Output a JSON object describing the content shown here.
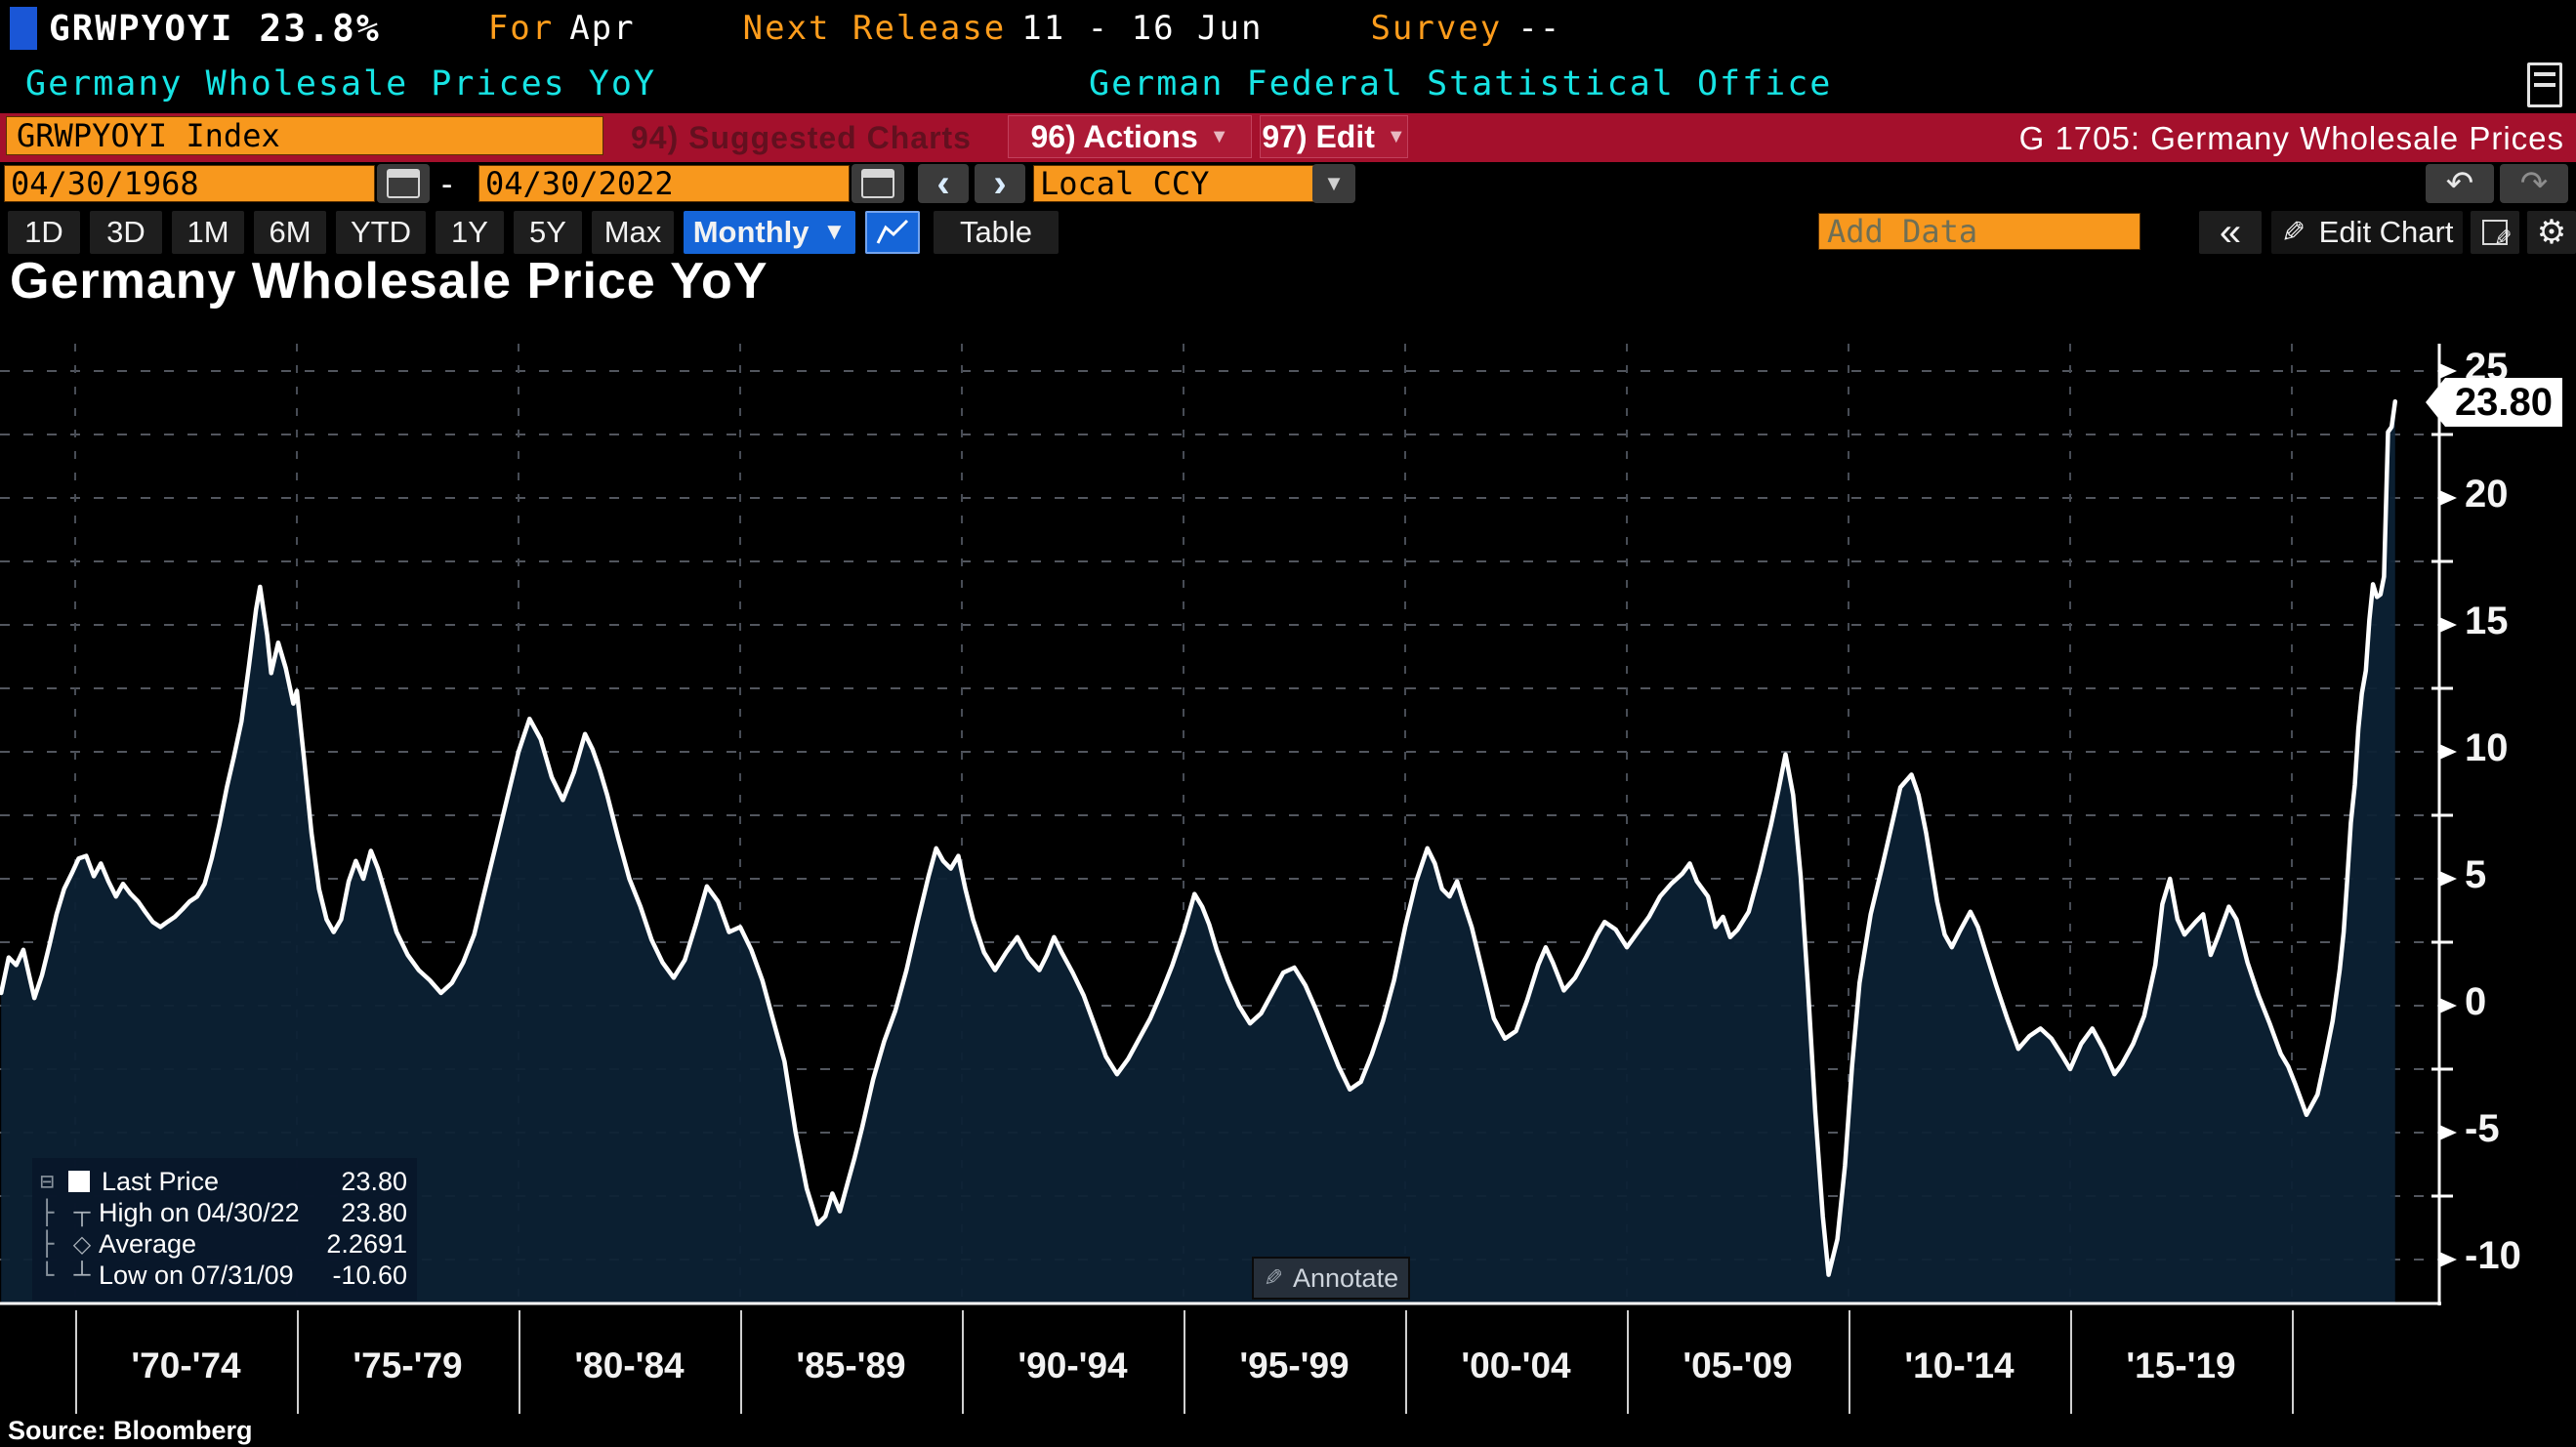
{
  "header": {
    "ticker": "GRWPYOYI",
    "value": "23.8%",
    "for_label": "For",
    "for_value": "Apr",
    "next_release_label": "Next Release",
    "next_release_value": "11 - 16 Jun",
    "survey_label": "Survey",
    "survey_value": "--"
  },
  "security_row": {
    "name": "Germany Wholesale Prices YoY",
    "organization": "German Federal Statistical Office"
  },
  "toolbar": {
    "ticker_field": "GRWPYOYI Index",
    "suggested_charts": "94) Suggested Charts",
    "actions": "96) Actions",
    "edit": "97) Edit",
    "chart_id": "G 1705: Germany Wholesale Prices"
  },
  "date_bar": {
    "from": "04/30/1968",
    "dash": "-",
    "to": "04/30/2022",
    "prev": "‹",
    "next": "›",
    "currency": "Local CCY",
    "undo": "↶",
    "redo": "↷"
  },
  "range_bar": {
    "items": [
      "1D",
      "3D",
      "1M",
      "6M",
      "YTD",
      "1Y",
      "5Y",
      "Max"
    ],
    "period": "Monthly",
    "table": "Table",
    "add_data_placeholder": "Add Data",
    "collapse": "«",
    "edit_chart": "Edit Chart"
  },
  "chart": {
    "title": "Germany Wholesale Price YoY",
    "badge": "23.80",
    "annotate": "Annotate",
    "source": "Source: Bloomberg",
    "legend": [
      {
        "label": "Last Price",
        "value": "23.80"
      },
      {
        "label": "High on 04/30/22",
        "value": "23.80"
      },
      {
        "label": "Average",
        "value": "2.2691"
      },
      {
        "label": "Low on 07/31/09",
        "value": "-10.60"
      }
    ]
  },
  "chart_data": {
    "type": "area",
    "title": "Germany Wholesale Price YoY",
    "x_range": [
      "04/30/1968",
      "04/30/2022"
    ],
    "ylim": [
      -12,
      26
    ],
    "y_ticks": [
      25,
      20,
      15,
      10,
      5,
      0,
      -5,
      -10
    ],
    "y_minor_step": 2.5,
    "grid": "dashed",
    "x_separator_years": [
      1970,
      1975,
      1980,
      1985,
      1990,
      1995,
      2000,
      2005,
      2010,
      2015,
      2020
    ],
    "x_band_labels": [
      "'70-'74",
      "'75-'79",
      "'80-'84",
      "'85-'89",
      "'90-'94",
      "'95-'99",
      "'00-'04",
      "'05-'09",
      "'10-'14",
      "'15-'19"
    ],
    "line_color": "#ffffff",
    "fill_color": "#0c2134",
    "stats": {
      "last": 23.8,
      "high_date": "04/30/22",
      "high": 23.8,
      "average": 2.2691,
      "low_date": "07/31/09",
      "low": -10.6
    },
    "series": [
      {
        "name": "Last Price",
        "points": [
          [
            1968.33,
            0.5
          ],
          [
            1968.5,
            1.9
          ],
          [
            1968.67,
            1.6
          ],
          [
            1968.83,
            2.2
          ],
          [
            1969.0,
            0.9
          ],
          [
            1969.08,
            0.3
          ],
          [
            1969.25,
            1.2
          ],
          [
            1969.42,
            2.4
          ],
          [
            1969.58,
            3.6
          ],
          [
            1969.75,
            4.6
          ],
          [
            1969.92,
            5.2
          ],
          [
            1970.08,
            5.8
          ],
          [
            1970.25,
            5.9
          ],
          [
            1970.42,
            5.1
          ],
          [
            1970.58,
            5.6
          ],
          [
            1970.75,
            4.9
          ],
          [
            1970.92,
            4.3
          ],
          [
            1971.08,
            4.8
          ],
          [
            1971.25,
            4.4
          ],
          [
            1971.42,
            4.1
          ],
          [
            1971.58,
            3.7
          ],
          [
            1971.75,
            3.3
          ],
          [
            1971.92,
            3.1
          ],
          [
            1972.08,
            3.3
          ],
          [
            1972.25,
            3.5
          ],
          [
            1972.42,
            3.8
          ],
          [
            1972.58,
            4.1
          ],
          [
            1972.75,
            4.3
          ],
          [
            1972.92,
            4.8
          ],
          [
            1973.08,
            5.8
          ],
          [
            1973.25,
            7.1
          ],
          [
            1973.42,
            8.6
          ],
          [
            1973.58,
            9.8
          ],
          [
            1973.75,
            11.2
          ],
          [
            1973.92,
            13.4
          ],
          [
            1974.08,
            15.6
          ],
          [
            1974.17,
            16.5
          ],
          [
            1974.33,
            14.6
          ],
          [
            1974.42,
            13.1
          ],
          [
            1974.58,
            14.3
          ],
          [
            1974.75,
            13.3
          ],
          [
            1974.92,
            11.9
          ],
          [
            1975.0,
            12.4
          ],
          [
            1975.17,
            9.6
          ],
          [
            1975.33,
            6.8
          ],
          [
            1975.5,
            4.6
          ],
          [
            1975.67,
            3.4
          ],
          [
            1975.83,
            2.9
          ],
          [
            1976.0,
            3.4
          ],
          [
            1976.17,
            4.9
          ],
          [
            1976.33,
            5.7
          ],
          [
            1976.5,
            5.0
          ],
          [
            1976.67,
            6.1
          ],
          [
            1976.83,
            5.4
          ],
          [
            1977.0,
            4.4
          ],
          [
            1977.25,
            2.9
          ],
          [
            1977.5,
            2.0
          ],
          [
            1977.75,
            1.4
          ],
          [
            1978.0,
            1.0
          ],
          [
            1978.25,
            0.5
          ],
          [
            1978.5,
            0.9
          ],
          [
            1978.75,
            1.7
          ],
          [
            1979.0,
            2.8
          ],
          [
            1979.25,
            4.6
          ],
          [
            1979.5,
            6.4
          ],
          [
            1979.75,
            8.2
          ],
          [
            1980.0,
            10.0
          ],
          [
            1980.25,
            11.3
          ],
          [
            1980.5,
            10.5
          ],
          [
            1980.75,
            9.0
          ],
          [
            1981.0,
            8.1
          ],
          [
            1981.25,
            9.2
          ],
          [
            1981.5,
            10.7
          ],
          [
            1981.67,
            10.1
          ],
          [
            1981.83,
            9.3
          ],
          [
            1982.0,
            8.3
          ],
          [
            1982.25,
            6.6
          ],
          [
            1982.5,
            5.0
          ],
          [
            1982.75,
            3.9
          ],
          [
            1983.0,
            2.6
          ],
          [
            1983.25,
            1.7
          ],
          [
            1983.5,
            1.1
          ],
          [
            1983.75,
            1.8
          ],
          [
            1984.0,
            3.2
          ],
          [
            1984.25,
            4.7
          ],
          [
            1984.5,
            4.1
          ],
          [
            1984.75,
            2.9
          ],
          [
            1985.0,
            3.1
          ],
          [
            1985.25,
            2.2
          ],
          [
            1985.5,
            1.0
          ],
          [
            1985.75,
            -0.6
          ],
          [
            1986.0,
            -2.2
          ],
          [
            1986.25,
            -5.0
          ],
          [
            1986.5,
            -7.2
          ],
          [
            1986.75,
            -8.6
          ],
          [
            1986.92,
            -8.3
          ],
          [
            1987.08,
            -7.4
          ],
          [
            1987.25,
            -8.1
          ],
          [
            1987.42,
            -7.0
          ],
          [
            1987.58,
            -6.0
          ],
          [
            1987.75,
            -4.8
          ],
          [
            1988.0,
            -2.9
          ],
          [
            1988.25,
            -1.4
          ],
          [
            1988.5,
            -0.2
          ],
          [
            1988.75,
            1.4
          ],
          [
            1989.0,
            3.3
          ],
          [
            1989.25,
            5.1
          ],
          [
            1989.42,
            6.2
          ],
          [
            1989.58,
            5.7
          ],
          [
            1989.75,
            5.4
          ],
          [
            1989.92,
            5.9
          ],
          [
            1990.08,
            4.6
          ],
          [
            1990.25,
            3.4
          ],
          [
            1990.5,
            2.1
          ],
          [
            1990.75,
            1.4
          ],
          [
            1991.0,
            2.1
          ],
          [
            1991.25,
            2.7
          ],
          [
            1991.5,
            1.9
          ],
          [
            1991.75,
            1.4
          ],
          [
            1991.92,
            2.0
          ],
          [
            1992.08,
            2.7
          ],
          [
            1992.25,
            2.1
          ],
          [
            1992.5,
            1.3
          ],
          [
            1992.75,
            0.4
          ],
          [
            1993.0,
            -0.8
          ],
          [
            1993.25,
            -2.0
          ],
          [
            1993.5,
            -2.7
          ],
          [
            1993.75,
            -2.1
          ],
          [
            1994.0,
            -1.3
          ],
          [
            1994.25,
            -0.5
          ],
          [
            1994.5,
            0.5
          ],
          [
            1994.75,
            1.6
          ],
          [
            1995.0,
            2.9
          ],
          [
            1995.25,
            4.4
          ],
          [
            1995.42,
            3.9
          ],
          [
            1995.58,
            3.2
          ],
          [
            1995.75,
            2.2
          ],
          [
            1996.0,
            1.0
          ],
          [
            1996.25,
            0.0
          ],
          [
            1996.5,
            -0.7
          ],
          [
            1996.75,
            -0.3
          ],
          [
            1997.0,
            0.5
          ],
          [
            1997.25,
            1.3
          ],
          [
            1997.5,
            1.5
          ],
          [
            1997.75,
            0.8
          ],
          [
            1998.0,
            -0.2
          ],
          [
            1998.25,
            -1.3
          ],
          [
            1998.5,
            -2.4
          ],
          [
            1998.75,
            -3.3
          ],
          [
            1999.0,
            -3.0
          ],
          [
            1999.25,
            -1.9
          ],
          [
            1999.5,
            -0.6
          ],
          [
            1999.75,
            1.0
          ],
          [
            2000.0,
            3.1
          ],
          [
            2000.25,
            4.9
          ],
          [
            2000.5,
            6.2
          ],
          [
            2000.67,
            5.6
          ],
          [
            2000.83,
            4.6
          ],
          [
            2001.0,
            4.3
          ],
          [
            2001.17,
            4.9
          ],
          [
            2001.33,
            4.0
          ],
          [
            2001.5,
            3.1
          ],
          [
            2001.75,
            1.3
          ],
          [
            2002.0,
            -0.5
          ],
          [
            2002.25,
            -1.3
          ],
          [
            2002.5,
            -1.0
          ],
          [
            2002.75,
            0.2
          ],
          [
            2003.0,
            1.6
          ],
          [
            2003.17,
            2.3
          ],
          [
            2003.33,
            1.7
          ],
          [
            2003.58,
            0.6
          ],
          [
            2003.83,
            1.1
          ],
          [
            2004.08,
            1.9
          ],
          [
            2004.33,
            2.8
          ],
          [
            2004.5,
            3.3
          ],
          [
            2004.75,
            3.0
          ],
          [
            2005.0,
            2.3
          ],
          [
            2005.25,
            2.9
          ],
          [
            2005.5,
            3.5
          ],
          [
            2005.75,
            4.3
          ],
          [
            2006.0,
            4.8
          ],
          [
            2006.25,
            5.2
          ],
          [
            2006.42,
            5.6
          ],
          [
            2006.58,
            4.9
          ],
          [
            2006.83,
            4.3
          ],
          [
            2007.0,
            3.1
          ],
          [
            2007.17,
            3.5
          ],
          [
            2007.33,
            2.7
          ],
          [
            2007.5,
            3.0
          ],
          [
            2007.75,
            3.7
          ],
          [
            2008.0,
            5.3
          ],
          [
            2008.25,
            7.1
          ],
          [
            2008.42,
            8.5
          ],
          [
            2008.58,
            9.9
          ],
          [
            2008.75,
            8.3
          ],
          [
            2008.92,
            5.1
          ],
          [
            2009.08,
            0.9
          ],
          [
            2009.25,
            -4.2
          ],
          [
            2009.42,
            -8.3
          ],
          [
            2009.55,
            -10.6
          ],
          [
            2009.75,
            -9.2
          ],
          [
            2009.92,
            -6.3
          ],
          [
            2010.08,
            -2.4
          ],
          [
            2010.25,
            0.9
          ],
          [
            2010.5,
            3.6
          ],
          [
            2010.75,
            5.4
          ],
          [
            2011.0,
            7.3
          ],
          [
            2011.17,
            8.6
          ],
          [
            2011.42,
            9.1
          ],
          [
            2011.58,
            8.3
          ],
          [
            2011.75,
            6.8
          ],
          [
            2012.0,
            4.1
          ],
          [
            2012.17,
            2.8
          ],
          [
            2012.33,
            2.3
          ],
          [
            2012.5,
            2.9
          ],
          [
            2012.75,
            3.7
          ],
          [
            2012.92,
            3.1
          ],
          [
            2013.08,
            2.2
          ],
          [
            2013.33,
            0.8
          ],
          [
            2013.58,
            -0.5
          ],
          [
            2013.83,
            -1.7
          ],
          [
            2014.08,
            -1.2
          ],
          [
            2014.33,
            -0.9
          ],
          [
            2014.58,
            -1.3
          ],
          [
            2014.83,
            -2.0
          ],
          [
            2015.0,
            -2.5
          ],
          [
            2015.25,
            -1.5
          ],
          [
            2015.5,
            -0.9
          ],
          [
            2015.75,
            -1.7
          ],
          [
            2016.0,
            -2.7
          ],
          [
            2016.17,
            -2.3
          ],
          [
            2016.42,
            -1.5
          ],
          [
            2016.67,
            -0.4
          ],
          [
            2016.92,
            1.6
          ],
          [
            2017.08,
            4.0
          ],
          [
            2017.25,
            5.0
          ],
          [
            2017.42,
            3.4
          ],
          [
            2017.58,
            2.8
          ],
          [
            2017.83,
            3.3
          ],
          [
            2018.0,
            3.6
          ],
          [
            2018.17,
            2.0
          ],
          [
            2018.33,
            2.7
          ],
          [
            2018.58,
            3.9
          ],
          [
            2018.75,
            3.4
          ],
          [
            2019.0,
            1.7
          ],
          [
            2019.25,
            0.4
          ],
          [
            2019.5,
            -0.7
          ],
          [
            2019.75,
            -1.9
          ],
          [
            2019.92,
            -2.4
          ],
          [
            2020.08,
            -3.1
          ],
          [
            2020.33,
            -4.3
          ],
          [
            2020.58,
            -3.5
          ],
          [
            2020.75,
            -2.1
          ],
          [
            2020.92,
            -0.6
          ],
          [
            2021.08,
            1.4
          ],
          [
            2021.17,
            2.9
          ],
          [
            2021.25,
            5.0
          ],
          [
            2021.33,
            7.2
          ],
          [
            2021.42,
            8.7
          ],
          [
            2021.5,
            10.9
          ],
          [
            2021.58,
            12.3
          ],
          [
            2021.67,
            13.2
          ],
          [
            2021.75,
            15.2
          ],
          [
            2021.83,
            16.6
          ],
          [
            2021.92,
            16.1
          ],
          [
            2022.0,
            16.2
          ],
          [
            2022.08,
            16.9
          ],
          [
            2022.17,
            22.6
          ],
          [
            2022.25,
            22.8
          ],
          [
            2022.33,
            23.8
          ]
        ]
      }
    ]
  }
}
